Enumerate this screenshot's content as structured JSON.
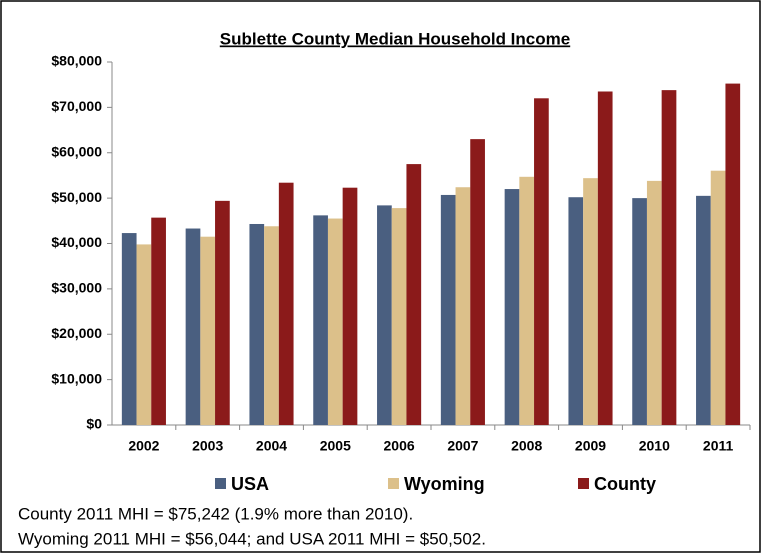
{
  "chart_data": {
    "type": "bar",
    "title": "Sublette County Median Household Income",
    "categories": [
      "2002",
      "2003",
      "2004",
      "2005",
      "2006",
      "2007",
      "2008",
      "2009",
      "2010",
      "2011"
    ],
    "series": [
      {
        "name": "USA",
        "color": "#4a5f80",
        "values": [
          42300,
          43300,
          44300,
          46200,
          48400,
          50700,
          52000,
          50200,
          50000,
          50502
        ]
      },
      {
        "name": "Wyoming",
        "color": "#dcc08a",
        "values": [
          39800,
          41500,
          43800,
          45500,
          47800,
          52400,
          54700,
          54400,
          53800,
          56044
        ]
      },
      {
        "name": "County",
        "color": "#8b1a1a",
        "values": [
          45700,
          49400,
          53400,
          52300,
          57500,
          63000,
          72000,
          73500,
          73800,
          75242
        ]
      }
    ],
    "ylim": [
      0,
      80000
    ],
    "yticks": [
      {
        "value": 0,
        "label": "$0"
      },
      {
        "value": 10000,
        "label": "$10,000"
      },
      {
        "value": 20000,
        "label": "$20,000"
      },
      {
        "value": 30000,
        "label": "$30,000"
      },
      {
        "value": 40000,
        "label": "$40,000"
      },
      {
        "value": 50000,
        "label": "$50,000"
      },
      {
        "value": 60000,
        "label": "$60,000"
      },
      {
        "value": 70000,
        "label": "$70,000"
      },
      {
        "value": 80000,
        "label": "$80,000"
      }
    ],
    "annotations": [
      "County 2011 MHI = $75,242 (1.9% more than 2010).",
      "Wyoming 2011 MHI = $56,044; and USA 2011 MHI = $50,502."
    ]
  }
}
